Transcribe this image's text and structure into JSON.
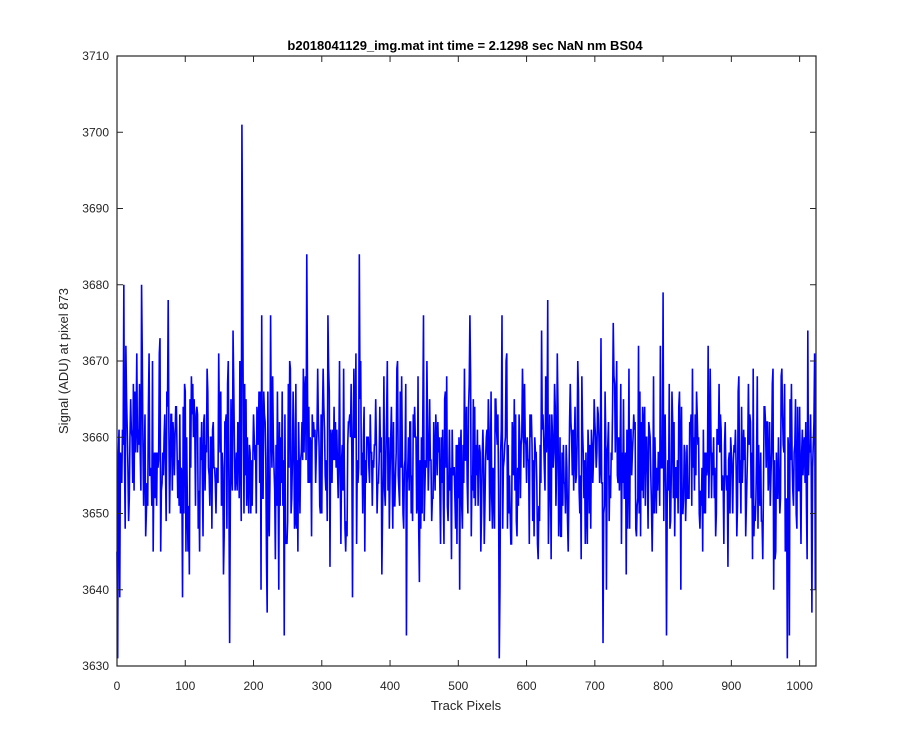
{
  "chart_data": {
    "type": "line",
    "title": "b2018041129_img.mat int time = 2.1298 sec  NaN nm BS04",
    "xlabel": "Track Pixels",
    "ylabel": "Signal (ADU) at pixel 873",
    "xlim": [
      0,
      1024
    ],
    "ylim": [
      3630,
      3710
    ],
    "xticks": [
      0,
      100,
      200,
      300,
      400,
      500,
      600,
      700,
      800,
      900,
      1000
    ],
    "yticks": [
      3630,
      3640,
      3650,
      3660,
      3670,
      3680,
      3690,
      3700,
      3710
    ],
    "grid": false,
    "legend": "none",
    "series": [
      {
        "color": "#0000ff",
        "baseline": 3657,
        "num_points": 1024,
        "noise_seed": 20180411,
        "spikes": [
          {
            "x": 1,
            "y": 3631
          },
          {
            "x": 4,
            "y": 3639
          },
          {
            "x": 10,
            "y": 3680
          },
          {
            "x": 36,
            "y": 3680
          },
          {
            "x": 75,
            "y": 3678
          },
          {
            "x": 96,
            "y": 3639
          },
          {
            "x": 165,
            "y": 3633
          },
          {
            "x": 183,
            "y": 3701
          },
          {
            "x": 184,
            "y": 3684
          },
          {
            "x": 220,
            "y": 3637
          },
          {
            "x": 245,
            "y": 3634
          },
          {
            "x": 278,
            "y": 3684
          },
          {
            "x": 345,
            "y": 3639
          },
          {
            "x": 355,
            "y": 3684
          },
          {
            "x": 424,
            "y": 3634
          },
          {
            "x": 560,
            "y": 3631
          },
          {
            "x": 631,
            "y": 3678
          },
          {
            "x": 712,
            "y": 3633
          },
          {
            "x": 800,
            "y": 3679
          },
          {
            "x": 805,
            "y": 3634
          },
          {
            "x": 982,
            "y": 3631
          },
          {
            "x": 985,
            "y": 3634
          },
          {
            "x": 1018,
            "y": 3637
          },
          {
            "x": 1022,
            "y": 3671
          }
        ]
      }
    ]
  }
}
